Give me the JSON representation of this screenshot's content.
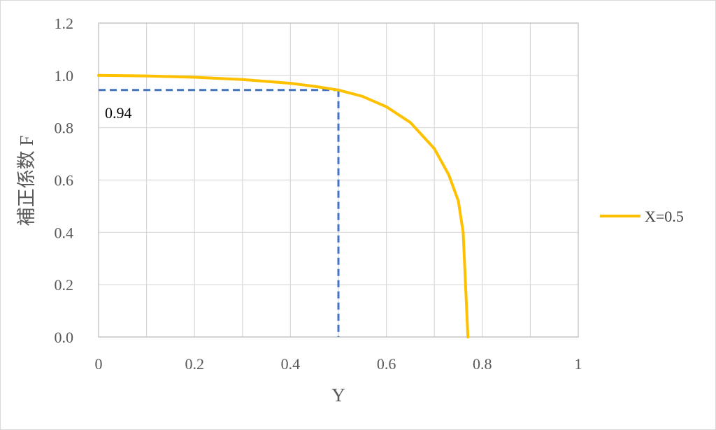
{
  "chart_data": {
    "type": "line",
    "xlabel": "Y",
    "ylabel": "補正係数 F",
    "xlim": [
      0,
      1
    ],
    "ylim": [
      0,
      1.2
    ],
    "x_ticks": [
      "0",
      "0.2",
      "0.4",
      "0.6",
      "0.8",
      "1"
    ],
    "y_ticks": [
      "0.0",
      "0.2",
      "0.4",
      "0.6",
      "0.8",
      "1.0",
      "1.2"
    ],
    "grid": true,
    "legend_position": "right",
    "series": [
      {
        "name": "X=0.5",
        "color": "#ffc000",
        "x": [
          0,
          0.1,
          0.2,
          0.3,
          0.4,
          0.45,
          0.5,
          0.55,
          0.6,
          0.65,
          0.7,
          0.73,
          0.75,
          0.76,
          0.765,
          0.77
        ],
        "y": [
          1.0,
          0.998,
          0.993,
          0.984,
          0.97,
          0.958,
          0.944,
          0.92,
          0.88,
          0.82,
          0.72,
          0.62,
          0.52,
          0.4,
          0.2,
          0.0
        ]
      }
    ],
    "annotation": {
      "label": "0.94",
      "x": 0.5,
      "y": 0.944,
      "color": "#4472c4"
    }
  }
}
